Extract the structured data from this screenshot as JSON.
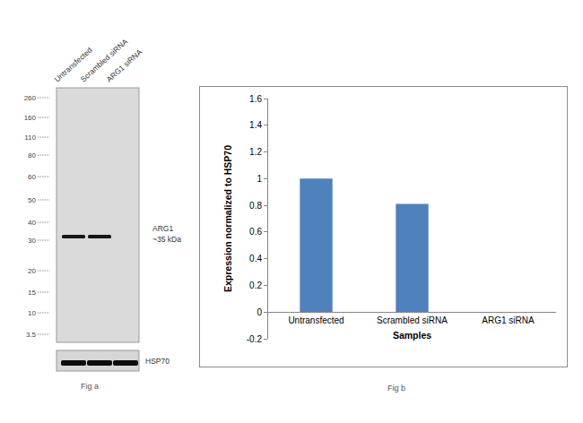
{
  "blot": {
    "lanes": [
      "Untransfected",
      "Scrambled siRNA",
      "ARG1 siRNA"
    ],
    "markers": [
      260,
      160,
      110,
      80,
      60,
      50,
      40,
      30,
      20,
      15,
      10,
      3.5
    ],
    "bands": [
      {
        "label": "ARG1",
        "size": "~35 kDa",
        "lanes": [
          true,
          true,
          false
        ]
      }
    ],
    "loading_control": {
      "label": "HSP70",
      "lanes": [
        true,
        true,
        true
      ]
    },
    "caption": "Fig a"
  },
  "chart_data": {
    "type": "bar",
    "categories": [
      "Untransfected",
      "Scrambled siRNA",
      "ARG1 siRNA"
    ],
    "values": [
      1,
      0.81,
      0
    ],
    "color": "#4f81bd",
    "xlabel": "Samples",
    "ylabel": "Expression normalized to HSP70",
    "ylim": [
      -0.2,
      1.6
    ],
    "yticks": [
      -0.2,
      0,
      0.2,
      0.4,
      0.6,
      0.8,
      1,
      1.2,
      1.4,
      1.6
    ],
    "grid": false,
    "caption": "Fig b"
  }
}
